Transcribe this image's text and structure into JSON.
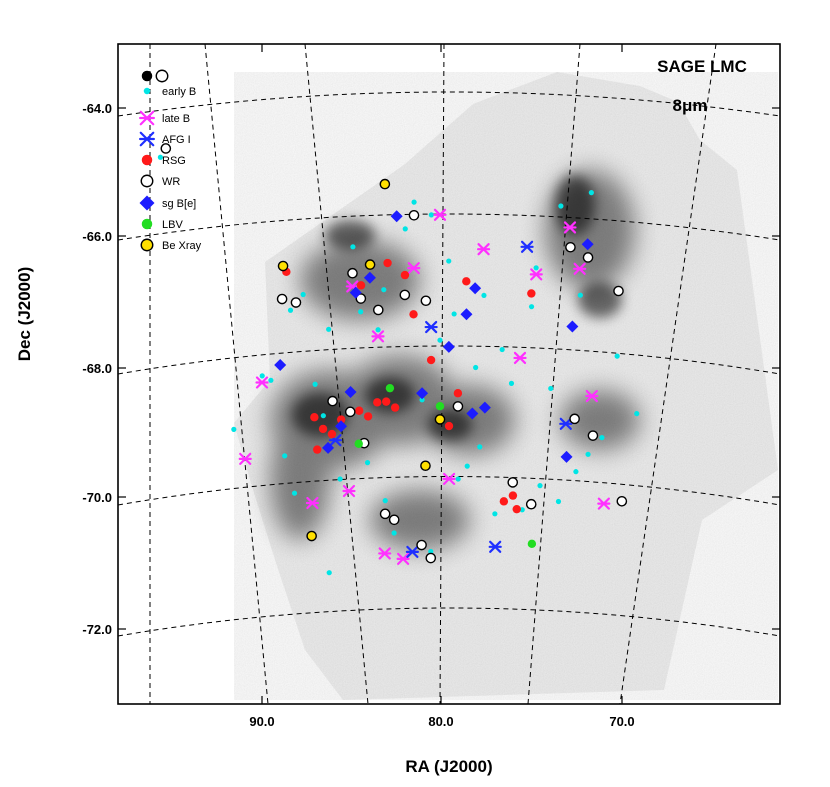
{
  "chart_data": {
    "type": "scatter",
    "title": "SAGE LMC",
    "subtitle": "8μm",
    "xlabel": "RA (J2000)",
    "ylabel": "Dec (J2000)",
    "x_ticks": [
      "90.0",
      "80.0",
      "70.0"
    ],
    "x_tick_values": [
      90,
      80,
      70
    ],
    "y_ticks": [
      "-64.0",
      "-66.0",
      "-68.0",
      "-70.0",
      "-72.0"
    ],
    "y_tick_values": [
      -64,
      -66,
      -68,
      -70,
      -72
    ],
    "xlim": [
      99.5,
      62.5
    ],
    "ylim": [
      -73.3,
      -62.8
    ],
    "grid": true,
    "legend_placement": "top-left",
    "background": "grayscale 8 micron image of the LMC",
    "series": [
      {
        "name": "early B",
        "key": "eB",
        "symbol": "dot",
        "color": "#00e5e5",
        "points": [
          [
            96.5,
            -64.0
          ],
          [
            89.5,
            -68.0
          ],
          [
            88.5,
            -67.0
          ],
          [
            87.0,
            -68.2
          ],
          [
            84.5,
            -67.2
          ],
          [
            83.5,
            -67.5
          ],
          [
            80.5,
            -65.8
          ],
          [
            79.5,
            -66.5
          ],
          [
            77.5,
            -67.0
          ],
          [
            76.0,
            -68.3
          ],
          [
            74.5,
            -66.5
          ],
          [
            73.0,
            -65.5
          ],
          [
            72.0,
            -66.8
          ],
          [
            70.0,
            -67.6
          ],
          [
            69.0,
            -68.4
          ],
          [
            78.5,
            -69.6
          ],
          [
            74.5,
            -69.8
          ],
          [
            72.5,
            -69.5
          ],
          [
            71.0,
            -68.9
          ],
          [
            86.5,
            -68.7
          ],
          [
            84.0,
            -69.5
          ],
          [
            82.5,
            -70.6
          ],
          [
            80.5,
            -70.9
          ],
          [
            86.0,
            -71.1
          ],
          [
            88.0,
            -69.8
          ],
          [
            90.0,
            -67.9
          ],
          [
            91.5,
            -68.6
          ],
          [
            81.0,
            -68.6
          ],
          [
            79.0,
            -69.8
          ],
          [
            77.0,
            -70.3
          ],
          [
            75.5,
            -70.2
          ],
          [
            73.5,
            -70.0
          ],
          [
            85.0,
            -66.2
          ],
          [
            82.0,
            -66.0
          ],
          [
            80.0,
            -67.7
          ],
          [
            78.0,
            -68.1
          ],
          [
            76.5,
            -67.8
          ],
          [
            73.8,
            -68.3
          ],
          [
            71.8,
            -69.2
          ],
          [
            87.8,
            -66.8
          ],
          [
            86.3,
            -67.4
          ],
          [
            85.5,
            -69.7
          ],
          [
            83.0,
            -70.1
          ],
          [
            77.8,
            -69.3
          ],
          [
            81.5,
            -65.6
          ],
          [
            83.2,
            -66.9
          ],
          [
            79.2,
            -67.3
          ],
          [
            74.8,
            -67.1
          ],
          [
            88.6,
            -69.2
          ],
          [
            71.2,
            -65.2
          ]
        ]
      },
      {
        "name": "late B",
        "key": "lB",
        "symbol": "asterisk",
        "color": "#ff30ff",
        "points": [
          [
            90.0,
            -68.0
          ],
          [
            90.8,
            -69.1
          ],
          [
            87.0,
            -70.0
          ],
          [
            85.0,
            -69.9
          ],
          [
            83.0,
            -70.9
          ],
          [
            82.0,
            -71.0
          ],
          [
            79.5,
            -69.8
          ],
          [
            80.0,
            -65.8
          ],
          [
            77.5,
            -66.3
          ],
          [
            75.5,
            -67.9
          ],
          [
            74.5,
            -66.6
          ],
          [
            72.0,
            -66.4
          ],
          [
            71.0,
            -69.9
          ],
          [
            71.5,
            -68.3
          ],
          [
            72.5,
            -65.8
          ],
          [
            85.0,
            -66.8
          ],
          [
            83.5,
            -67.6
          ],
          [
            81.5,
            -66.6
          ]
        ]
      },
      {
        "name": "AFG I",
        "key": "AFG",
        "symbol": "asterisk",
        "color": "#1f2fff",
        "points": [
          [
            80.5,
            -67.5
          ],
          [
            77.0,
            -70.8
          ],
          [
            75.0,
            -66.2
          ],
          [
            73.0,
            -68.8
          ],
          [
            81.5,
            -70.9
          ],
          [
            85.8,
            -69.1
          ]
        ]
      },
      {
        "name": "RSG",
        "key": "RSG",
        "symbol": "dot",
        "color": "#ff1a1a",
        "points": [
          [
            88.8,
            -66.4
          ],
          [
            87.0,
            -68.7
          ],
          [
            86.5,
            -68.9
          ],
          [
            86.0,
            -69.0
          ],
          [
            85.5,
            -68.8
          ],
          [
            84.5,
            -68.7
          ],
          [
            84.0,
            -68.8
          ],
          [
            83.5,
            -68.6
          ],
          [
            83.0,
            -68.6
          ],
          [
            82.5,
            -68.7
          ],
          [
            80.0,
            -68.9
          ],
          [
            79.5,
            -69.0
          ],
          [
            76.0,
            -70.0
          ],
          [
            75.8,
            -70.2
          ],
          [
            76.5,
            -70.1
          ],
          [
            84.5,
            -66.8
          ],
          [
            84.0,
            -66.7
          ],
          [
            83.0,
            -66.5
          ],
          [
            82.0,
            -66.7
          ],
          [
            80.5,
            -68.0
          ],
          [
            86.8,
            -69.2
          ],
          [
            78.5,
            -66.8
          ],
          [
            74.8,
            -66.9
          ],
          [
            81.5,
            -67.3
          ],
          [
            79.0,
            -68.5
          ]
        ]
      },
      {
        "name": "WR",
        "key": "WR",
        "symbol": "ring",
        "color": "#000000",
        "points": [
          [
            96.2,
            -63.9
          ],
          [
            89.0,
            -66.8
          ],
          [
            88.2,
            -66.9
          ],
          [
            86.0,
            -68.5
          ],
          [
            85.0,
            -68.7
          ],
          [
            84.2,
            -69.2
          ],
          [
            83.0,
            -70.3
          ],
          [
            82.5,
            -70.4
          ],
          [
            81.0,
            -70.8
          ],
          [
            80.5,
            -71.0
          ],
          [
            79.0,
            -68.7
          ],
          [
            76.0,
            -69.8
          ],
          [
            75.0,
            -70.1
          ],
          [
            71.5,
            -68.9
          ],
          [
            70.0,
            -69.8
          ],
          [
            72.5,
            -68.7
          ],
          [
            72.5,
            -66.1
          ],
          [
            71.5,
            -66.2
          ],
          [
            81.5,
            -65.8
          ],
          [
            84.5,
            -67.0
          ],
          [
            83.5,
            -67.2
          ],
          [
            82.0,
            -67.0
          ],
          [
            85.0,
            -66.6
          ],
          [
            80.8,
            -67.1
          ],
          [
            69.8,
            -66.6
          ]
        ]
      },
      {
        "name": "sg B[e]",
        "key": "sgBe",
        "symbol": "diamond",
        "color": "#1c1cff",
        "points": [
          [
            89.0,
            -67.8
          ],
          [
            85.0,
            -68.4
          ],
          [
            84.0,
            -66.7
          ],
          [
            82.5,
            -65.8
          ],
          [
            78.0,
            -66.9
          ],
          [
            78.5,
            -67.3
          ],
          [
            79.5,
            -67.8
          ],
          [
            77.5,
            -68.7
          ],
          [
            78.2,
            -68.8
          ],
          [
            73.0,
            -69.3
          ],
          [
            72.5,
            -67.3
          ],
          [
            71.5,
            -66.0
          ],
          [
            86.2,
            -69.2
          ],
          [
            85.5,
            -68.9
          ],
          [
            81.0,
            -68.5
          ],
          [
            84.8,
            -66.9
          ]
        ]
      },
      {
        "name": "LBV",
        "key": "LBV",
        "symbol": "dot",
        "color": "#22dd22",
        "points": [
          [
            84.5,
            -69.2
          ],
          [
            82.8,
            -68.4
          ],
          [
            80.0,
            -68.7
          ],
          [
            75.0,
            -70.7
          ]
        ]
      },
      {
        "name": "Be Xray",
        "key": "BeX",
        "symbol": "ringfill",
        "color": "#ffe000",
        "points": [
          [
            89.0,
            -66.3
          ],
          [
            87.0,
            -70.5
          ],
          [
            84.0,
            -66.5
          ],
          [
            83.2,
            -65.3
          ],
          [
            80.0,
            -68.9
          ],
          [
            80.8,
            -69.6
          ]
        ]
      }
    ]
  }
}
